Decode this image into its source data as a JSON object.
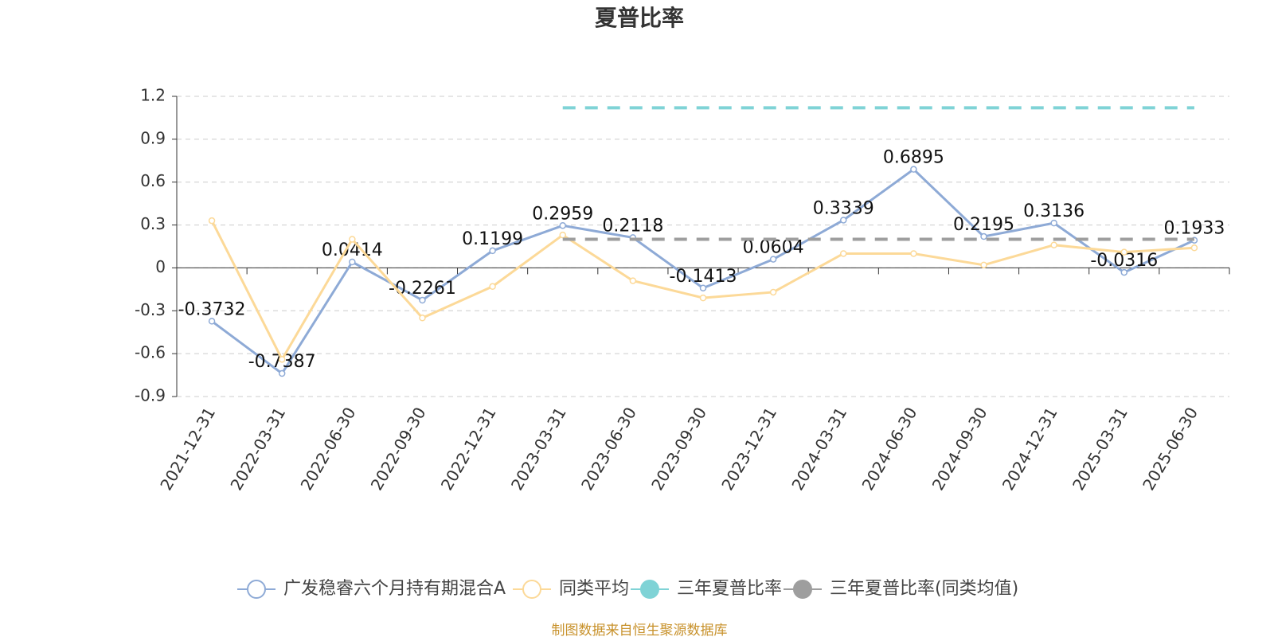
{
  "chart_data": {
    "type": "line",
    "title": "夏普比率",
    "source": "制图数据来自恒生聚源数据库",
    "categories": [
      "2021-12-31",
      "2022-03-31",
      "2022-06-30",
      "2022-09-30",
      "2022-12-31",
      "2023-03-31",
      "2023-06-30",
      "2023-09-30",
      "2023-12-31",
      "2024-03-31",
      "2024-06-30",
      "2024-09-30",
      "2024-12-31",
      "2025-03-31",
      "2025-06-30"
    ],
    "series": [
      {
        "name": "广发稳睿六个月持有期混合A",
        "color": "#8eaad6",
        "labels": true,
        "markers": true,
        "dashed": false,
        "values": [
          -0.3732,
          -0.7387,
          0.0414,
          -0.2261,
          0.1199,
          0.2959,
          0.2118,
          -0.1413,
          0.0604,
          0.3339,
          0.6895,
          0.2195,
          0.3136,
          -0.0316,
          0.1933
        ]
      },
      {
        "name": "同类平均",
        "color": "#fcd998",
        "labels": false,
        "markers": true,
        "dashed": false,
        "values": [
          0.33,
          -0.64,
          0.2,
          -0.35,
          -0.13,
          0.23,
          -0.09,
          -0.21,
          -0.17,
          0.1,
          0.1,
          0.02,
          0.16,
          0.11,
          0.14
        ]
      },
      {
        "name": "三年夏普比率",
        "color": "#7fd3d6",
        "labels": false,
        "markers": false,
        "dashed": true,
        "values": [
          null,
          null,
          null,
          null,
          null,
          1.12,
          1.12,
          1.12,
          1.12,
          1.12,
          1.12,
          1.12,
          1.12,
          1.12,
          1.12
        ]
      },
      {
        "name": "三年夏普比率(同类均值)",
        "color": "#9e9e9e",
        "labels": false,
        "markers": false,
        "dashed": true,
        "values": [
          null,
          null,
          null,
          null,
          null,
          0.2,
          0.2,
          0.2,
          0.2,
          0.2,
          0.2,
          0.2,
          0.2,
          0.2,
          0.2
        ]
      }
    ],
    "ylim": [
      -0.9,
      1.2
    ],
    "yticks": [
      -0.9,
      -0.6,
      -0.3,
      0,
      0.3,
      0.6,
      0.9,
      1.2
    ],
    "grid": true
  }
}
